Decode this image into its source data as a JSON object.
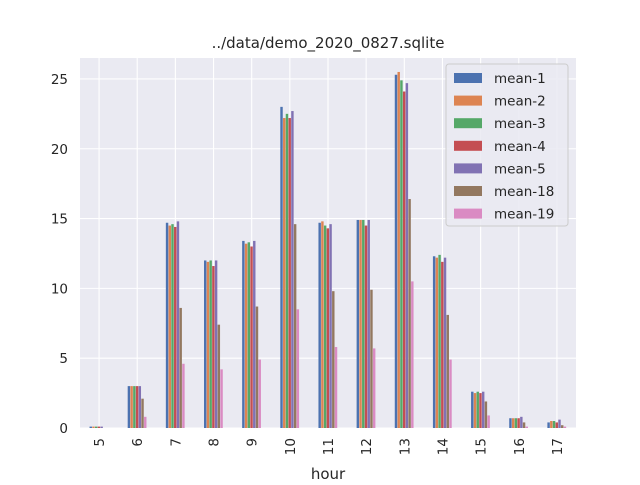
{
  "chart_data": {
    "type": "bar",
    "title": "../data/demo_2020_0827.sqlite",
    "xlabel": "hour",
    "ylabel": "",
    "ylim": [
      0,
      26.5
    ],
    "yticks": [
      0,
      5,
      10,
      15,
      20,
      25
    ],
    "grid": true,
    "legend_position": "top-right",
    "categories": [
      "5",
      "6",
      "7",
      "8",
      "9",
      "10",
      "11",
      "12",
      "13",
      "14",
      "15",
      "16",
      "17"
    ],
    "series": [
      {
        "name": "mean-1",
        "color": "#4c72b0",
        "values": [
          0.1,
          3.0,
          14.7,
          12.0,
          13.4,
          23.0,
          14.7,
          14.9,
          25.3,
          12.3,
          2.6,
          0.7,
          0.4
        ]
      },
      {
        "name": "mean-2",
        "color": "#dd8452",
        "values": [
          0.1,
          3.0,
          14.5,
          11.9,
          13.2,
          22.2,
          14.8,
          14.9,
          25.5,
          12.2,
          2.5,
          0.7,
          0.5
        ]
      },
      {
        "name": "mean-3",
        "color": "#55a868",
        "values": [
          0.1,
          3.0,
          14.6,
          12.0,
          13.3,
          22.5,
          14.5,
          14.9,
          24.9,
          12.4,
          2.6,
          0.7,
          0.5
        ]
      },
      {
        "name": "mean-4",
        "color": "#c44e52",
        "values": [
          0.1,
          3.0,
          14.4,
          11.6,
          13.0,
          22.2,
          14.3,
          14.5,
          24.1,
          11.9,
          2.5,
          0.7,
          0.4
        ]
      },
      {
        "name": "mean-5",
        "color": "#8172b3",
        "values": [
          0.1,
          3.0,
          14.8,
          12.0,
          13.4,
          22.7,
          14.6,
          14.9,
          24.7,
          12.2,
          2.6,
          0.8,
          0.6
        ]
      },
      {
        "name": "mean-18",
        "color": "#937860",
        "values": [
          0.0,
          2.1,
          8.6,
          7.4,
          8.7,
          14.6,
          9.8,
          9.9,
          16.4,
          8.1,
          1.9,
          0.4,
          0.2
        ]
      },
      {
        "name": "mean-19",
        "color": "#da8bc3",
        "values": [
          0.0,
          0.8,
          4.6,
          4.2,
          4.9,
          8.5,
          5.8,
          5.7,
          10.5,
          4.9,
          0.9,
          0.1,
          0.1
        ]
      }
    ]
  }
}
